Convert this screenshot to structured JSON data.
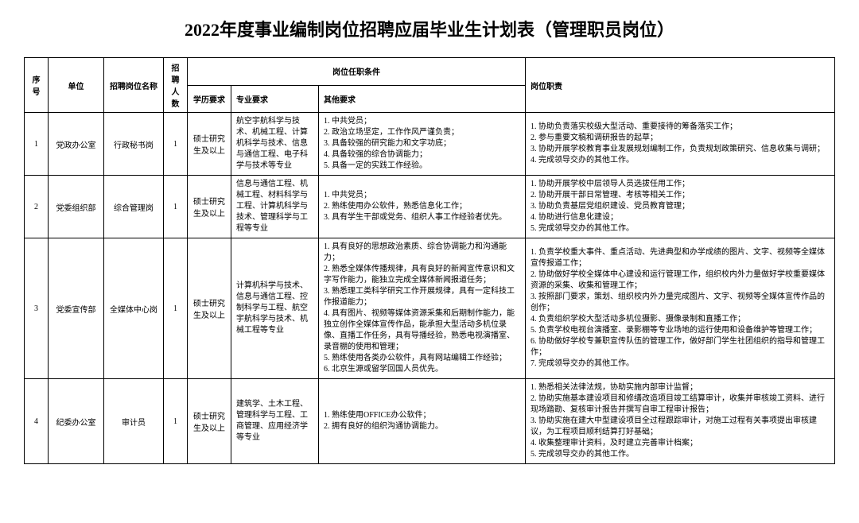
{
  "title": "2022年度事业编制岗位招聘应届毕业生计划表（管理职员岗位）",
  "headers": {
    "seq": "序号",
    "unit": "单位",
    "post": "招聘岗位名称",
    "count": "招聘人数",
    "conditions": "岗位任职条件",
    "edu": "学历要求",
    "major": "专业要求",
    "other": "其他要求",
    "duty": "岗位职责"
  },
  "rows": [
    {
      "seq": "1",
      "unit": "党政办公室",
      "post": "行政秘书岗",
      "count": "1",
      "edu": "硕士研究生及以上",
      "major": "航空宇航科学与技术、机械工程、计算机科学与技术、信息与通信工程、电子科学与技术等专业",
      "other": "1. 中共党员；\n2. 政治立场坚定，工作作风严谨负责；\n3. 具备较强的研究能力和文字功底；\n4. 具备较强的综合协调能力；\n5. 具备一定的实践工作经验。",
      "duty": "1. 协助负责落实校级大型活动、重要接待的筹备落实工作；\n2. 参与重要文稿和调研报告的起草；\n3. 协助开展学校教育事业发展规划编制工作，负责规划政策研究、信息收集与调研；\n4. 完成领导交办的其他工作。"
    },
    {
      "seq": "2",
      "unit": "党委组织部",
      "post": "综合管理岗",
      "count": "1",
      "edu": "硕士研究生及以上",
      "major": "信息与通信工程、机械工程、材料科学与工程、计算机科学与技术、管理科学与工程等专业",
      "other": "1. 中共党员；\n2. 熟练使用办公软件，熟悉信息化工作；\n3. 具有学生干部或党务、组织人事工作经验者优先。",
      "duty": "1. 协助开展学校中层领导人员选拔任用工作；\n2. 协助开展干部日常管理、考核等相关工作；\n3. 协助负责基层党组织建设、党员教育管理；\n4. 协助进行信息化建设；\n5. 完成领导交办的其他工作。"
    },
    {
      "seq": "3",
      "unit": "党委宣传部",
      "post": "全媒体中心岗",
      "count": "1",
      "edu": "硕士研究生及以上",
      "major": "计算机科学与技术、信息与通信工程、控制科学与工程、航空宇航科学与技术、机械工程等专业",
      "other": "1. 具有良好的思想政治素质、综合协调能力和沟通能力；\n2. 熟悉全媒体传播规律，具有良好的新闻宣传意识和文字写作能力，能独立完成全媒体新闻报道任务；\n3. 熟悉理工类科学研究工作开展规律，具有一定科技工作报道能力；\n4. 具有图片、视频等媒体资源采集和后期制作能力，能独立创作全媒体宣传作品，能承担大型活动多机位录像、直播工作任务，具有导播经验，熟悉电视演播室、录音棚的使用和管理；\n5. 熟练使用各类办公软件，具有网站编辑工作经验；\n6. 北京生源或留学回国人员优先。",
      "duty": "1. 负责学校重大事件、重点活动、先进典型和办学成绩的图片、文字、视频等全媒体宣传报道工作；\n2. 协助做好学校全媒体中心建设和运行管理工作，组织校内外力量做好学校重要媒体资源的采集、收集和管理工作；\n3. 按照部门要求，策划、组织校内外力量完成图片、文字、视频等全媒体宣传作品的创作；\n4. 负责组织学校大型活动多机位摄影、摄像录制和直播工作；\n5. 负责学校电视台演播室、录影棚等专业场地的运行使用和设备维护等管理工作；\n6. 协助做好学校专兼职宣传队伍的管理工作，做好部门学生社团组织的指导和管理工作；\n7. 完成领导交办的其他工作。"
    },
    {
      "seq": "4",
      "unit": "纪委办公室",
      "post": "审计员",
      "count": "1",
      "edu": "硕士研究生及以上",
      "major": "建筑学、土木工程、管理科学与工程、工商管理、应用经济学等专业",
      "other": "1. 熟练使用OFFICE办公软件；\n2. 拥有良好的组织沟通协调能力。",
      "duty": "1. 熟悉相关法律法规，协助实施内部审计监督；\n2. 协助实施基本建设项目和修缮改造项目竣工结算审计，收集并审核竣工资料、进行现场踏勘、复核审计报告并撰写自审工程审计报告；\n3. 协助实施在建大中型建设项目全过程跟踪审计，对施工过程有关事项提出审核建议，为工程项目顺利结算打好基础；\n4. 收集整理审计资料，及时建立完善审计档案；\n5. 完成领导交办的其他工作。"
    }
  ]
}
